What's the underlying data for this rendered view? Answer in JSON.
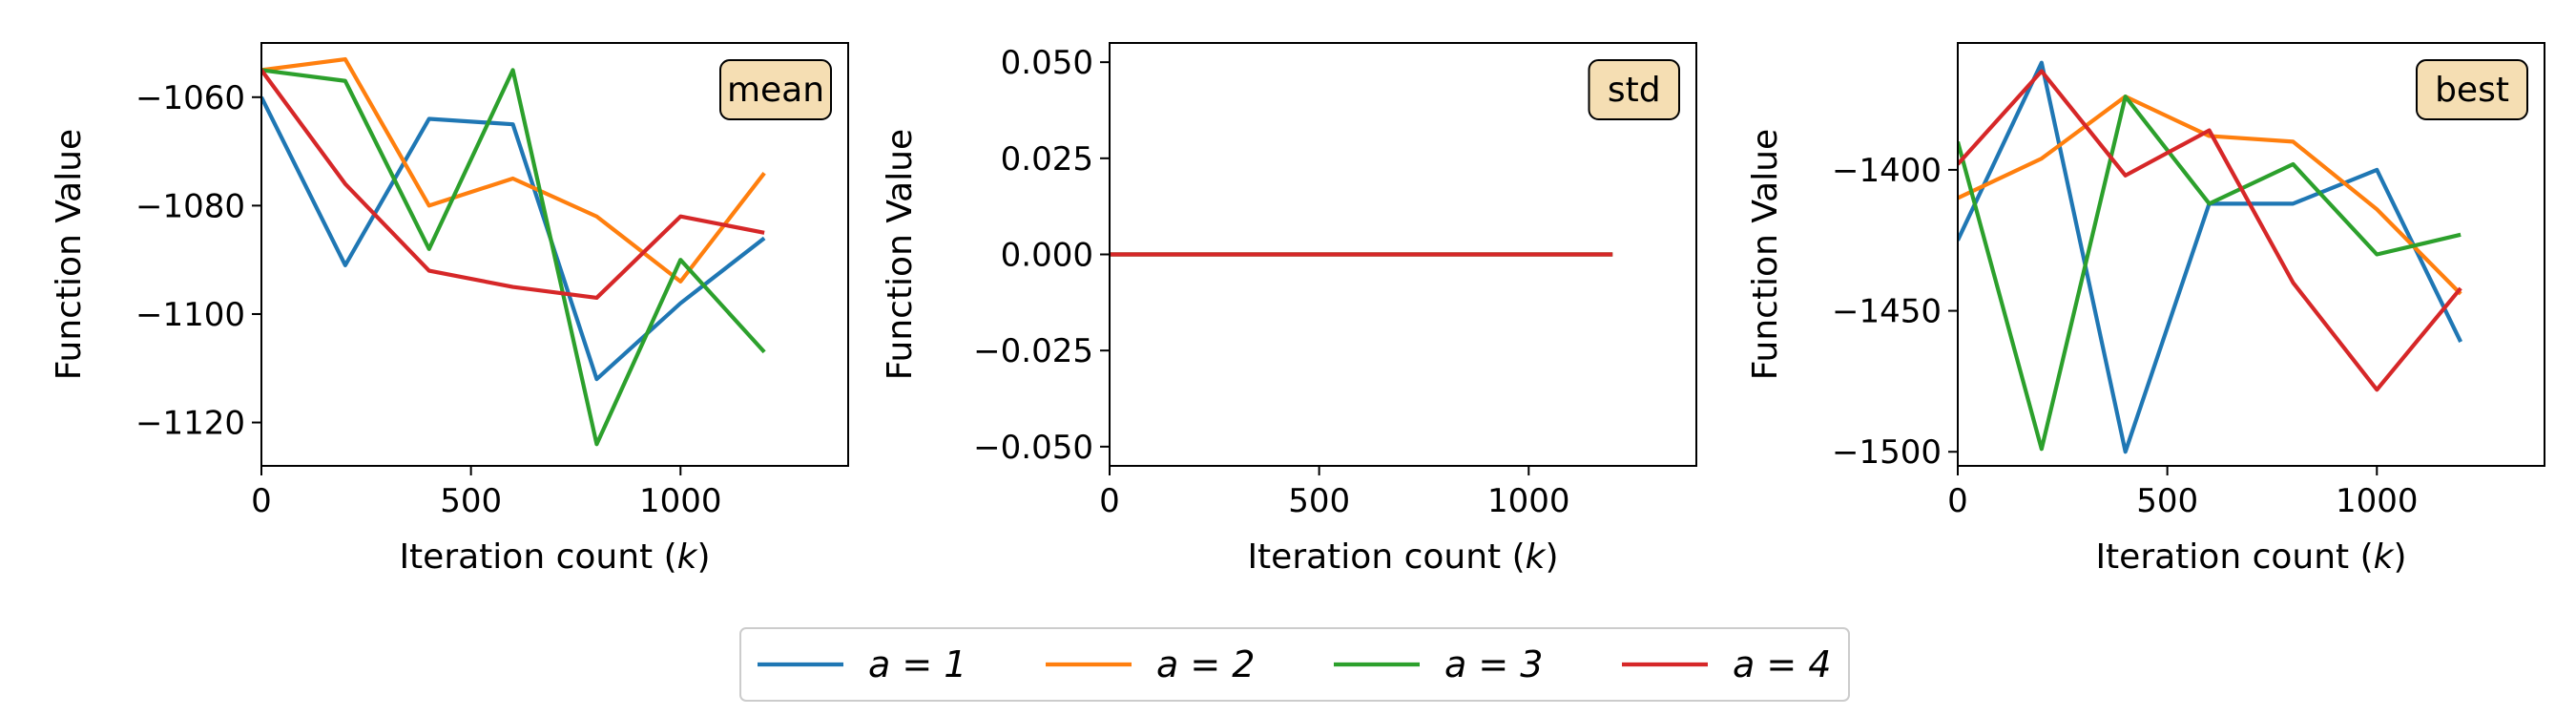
{
  "chart_data": [
    {
      "type": "line",
      "badge": "mean",
      "xlabel": "Iteration count (k)",
      "ylabel": "Function Value",
      "xlim": [
        0,
        1400
      ],
      "ylim": [
        -1128,
        -1050
      ],
      "xticks": [
        0,
        500,
        1000
      ],
      "yticks": [
        -1060,
        -1080,
        -1100,
        -1120
      ],
      "x": [
        0,
        200,
        400,
        600,
        800,
        1000,
        1200
      ],
      "series": [
        {
          "name": "a = 1",
          "color": "#1f77b4",
          "values": [
            -1060,
            -1091,
            -1064,
            -1065,
            -1112,
            -1098,
            -1086
          ]
        },
        {
          "name": "a = 2",
          "color": "#ff7f0e",
          "values": [
            -1055,
            -1053,
            -1080,
            -1075,
            -1082,
            -1094,
            -1074
          ]
        },
        {
          "name": "a = 3",
          "color": "#2ca02c",
          "values": [
            -1055,
            -1057,
            -1088,
            -1055,
            -1124,
            -1090,
            -1107
          ]
        },
        {
          "name": "a = 4",
          "color": "#d62728",
          "values": [
            -1055,
            -1076,
            -1092,
            -1095,
            -1097,
            -1082,
            -1085
          ]
        }
      ]
    },
    {
      "type": "line",
      "badge": "std",
      "xlabel": "Iteration count (k)",
      "ylabel": "Function Value",
      "xlim": [
        0,
        1400
      ],
      "ylim": [
        -0.055,
        0.055
      ],
      "xticks": [
        0,
        500,
        1000
      ],
      "yticks": [
        0.05,
        0.025,
        0.0,
        -0.025,
        -0.05
      ],
      "ytick_labels": [
        "0.050",
        "0.025",
        "0.000",
        "−0.025",
        "−0.050"
      ],
      "x": [
        0,
        200,
        400,
        600,
        800,
        1000,
        1200
      ],
      "series": [
        {
          "name": "a = 1",
          "color": "#1f77b4",
          "values": [
            0,
            0,
            0,
            0,
            0,
            0,
            0
          ]
        },
        {
          "name": "a = 2",
          "color": "#ff7f0e",
          "values": [
            0,
            0,
            0,
            0,
            0,
            0,
            0
          ]
        },
        {
          "name": "a = 3",
          "color": "#2ca02c",
          "values": [
            0,
            0,
            0,
            0,
            0,
            0,
            0
          ]
        },
        {
          "name": "a = 4",
          "color": "#d62728",
          "values": [
            0,
            0,
            0,
            0,
            0,
            0,
            0
          ]
        }
      ]
    },
    {
      "type": "line",
      "badge": "best",
      "xlabel": "Iteration count (k)",
      "ylabel": "Function Value",
      "xlim": [
        0,
        1400
      ],
      "ylim": [
        -1505,
        -1355
      ],
      "xticks": [
        0,
        500,
        1000
      ],
      "yticks": [
        -1400,
        -1450,
        -1500
      ],
      "x": [
        0,
        200,
        400,
        600,
        800,
        1000,
        1200
      ],
      "series": [
        {
          "name": "a = 1",
          "color": "#1f77b4",
          "values": [
            -1425,
            -1362,
            -1500,
            -1412,
            -1412,
            -1400,
            -1461
          ]
        },
        {
          "name": "a = 2",
          "color": "#ff7f0e",
          "values": [
            -1410,
            -1396,
            -1374,
            -1388,
            -1390,
            -1414,
            -1444
          ]
        },
        {
          "name": "a = 3",
          "color": "#2ca02c",
          "values": [
            -1390,
            -1499,
            -1374,
            -1412,
            -1398,
            -1430,
            -1423
          ]
        },
        {
          "name": "a = 4",
          "color": "#d62728",
          "values": [
            -1398,
            -1365,
            -1402,
            -1386,
            -1440,
            -1478,
            -1442
          ]
        }
      ]
    }
  ],
  "legend": {
    "placement": "bottom-center",
    "entries": [
      {
        "label": "a = 1",
        "color": "#1f77b4"
      },
      {
        "label": "a = 2",
        "color": "#ff7f0e"
      },
      {
        "label": "a = 3",
        "color": "#2ca02c"
      },
      {
        "label": "a = 4",
        "color": "#d62728"
      }
    ]
  },
  "badge_fill": "#f5deb3"
}
